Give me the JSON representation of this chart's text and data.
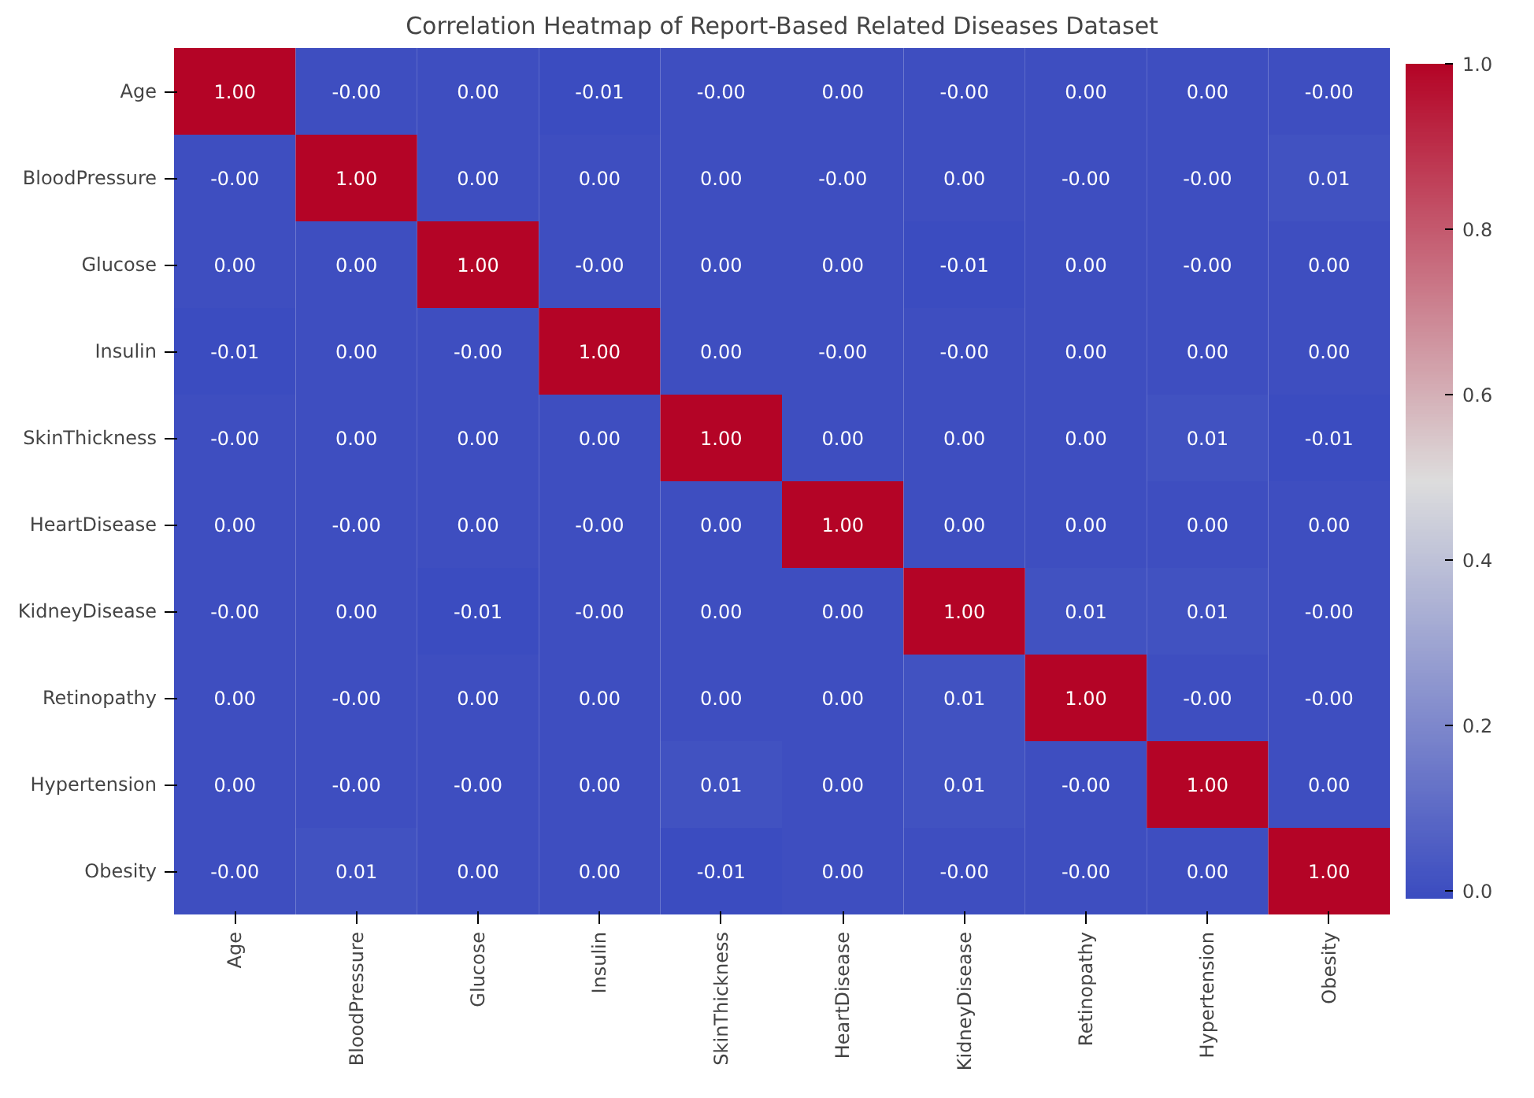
{
  "chart_data": {
    "type": "heatmap",
    "title": "Correlation Heatmap of Report-Based Related Diseases Dataset",
    "categories": [
      "Age",
      "BloodPressure",
      "Glucose",
      "Insulin",
      "SkinThickness",
      "HeartDisease",
      "KidneyDisease",
      "Retinopathy",
      "Hypertension",
      "Obesity"
    ],
    "y_categories": [
      "Age",
      "BloodPressure",
      "Glucose",
      "Insulin",
      "SkinThickness",
      "HeartDisease",
      "KidneyDisease",
      "Retinopathy",
      "Hypertension",
      "Obesity"
    ],
    "cells": [
      [
        1.0,
        0,
        0,
        -0.01,
        0,
        0,
        0,
        0,
        0,
        0
      ],
      [
        0,
        1.0,
        0,
        0,
        0,
        0,
        0,
        0,
        0,
        0.01
      ],
      [
        0,
        0,
        1.0,
        0,
        0,
        0,
        -0.01,
        0,
        0,
        0
      ],
      [
        -0.01,
        0,
        0,
        1.0,
        0,
        0,
        0,
        0,
        0,
        0
      ],
      [
        0,
        0,
        0,
        0,
        1.0,
        0,
        0,
        0,
        0.01,
        -0.01
      ],
      [
        0,
        0,
        0,
        0,
        0,
        1.0,
        0,
        0,
        0,
        0
      ],
      [
        0,
        0,
        -0.01,
        0,
        0,
        0,
        1.0,
        0.01,
        0.01,
        0
      ],
      [
        0,
        0,
        0,
        0,
        0,
        0,
        0.01,
        1.0,
        0,
        0
      ],
      [
        0,
        0,
        0,
        0,
        0.01,
        0,
        0.01,
        0,
        1.0,
        0
      ],
      [
        0,
        0.01,
        0,
        0,
        -0.01,
        0,
        0,
        0,
        0,
        1.0
      ]
    ],
    "cell_labels": [
      [
        "1.00",
        "-0.00",
        "0.00",
        "-0.01",
        "-0.00",
        "0.00",
        "-0.00",
        "0.00",
        "0.00",
        "-0.00"
      ],
      [
        "-0.00",
        "1.00",
        "0.00",
        "0.00",
        "0.00",
        "-0.00",
        "0.00",
        "-0.00",
        "-0.00",
        "0.01"
      ],
      [
        "0.00",
        "0.00",
        "1.00",
        "-0.00",
        "0.00",
        "0.00",
        "-0.01",
        "0.00",
        "-0.00",
        "0.00"
      ],
      [
        "-0.01",
        "0.00",
        "-0.00",
        "1.00",
        "0.00",
        "-0.00",
        "-0.00",
        "0.00",
        "0.00",
        "0.00"
      ],
      [
        "-0.00",
        "0.00",
        "0.00",
        "0.00",
        "1.00",
        "0.00",
        "0.00",
        "0.00",
        "0.01",
        "-0.01"
      ],
      [
        "0.00",
        "-0.00",
        "0.00",
        "-0.00",
        "0.00",
        "1.00",
        "0.00",
        "0.00",
        "0.00",
        "0.00"
      ],
      [
        "-0.00",
        "0.00",
        "-0.01",
        "-0.00",
        "0.00",
        "0.00",
        "1.00",
        "0.01",
        "0.01",
        "-0.00"
      ],
      [
        "0.00",
        "-0.00",
        "0.00",
        "0.00",
        "0.00",
        "0.00",
        "0.01",
        "1.00",
        "-0.00",
        "-0.00"
      ],
      [
        "0.00",
        "-0.00",
        "-0.00",
        "0.00",
        "0.01",
        "0.00",
        "0.01",
        "-0.00",
        "1.00",
        "0.00"
      ],
      [
        "-0.00",
        "0.01",
        "0.00",
        "0.00",
        "-0.01",
        "0.00",
        "-0.00",
        "-0.00",
        "0.00",
        "1.00"
      ]
    ],
    "clim": [
      -0.01,
      1.0
    ],
    "cticks": [
      {
        "value": 0,
        "label": "0.0"
      },
      {
        "value": 0.2,
        "label": "0.2"
      },
      {
        "value": 0.4,
        "label": "0.4"
      },
      {
        "value": 0.6,
        "label": "0.6"
      },
      {
        "value": 0.8,
        "label": "0.8"
      },
      {
        "value": 1.0,
        "label": "1.0"
      }
    ]
  }
}
